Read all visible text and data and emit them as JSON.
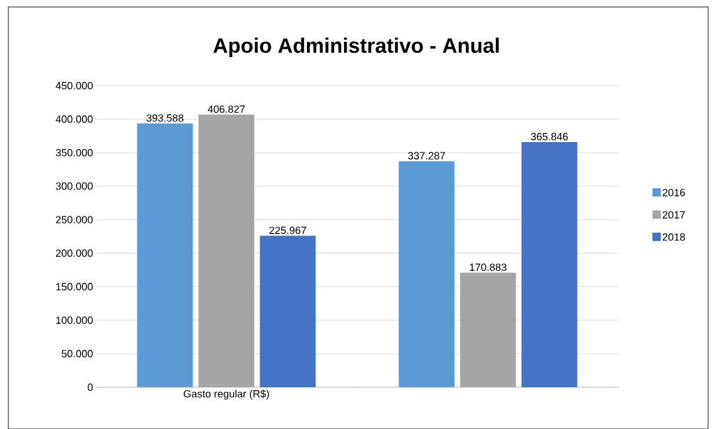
{
  "chart_data": {
    "type": "bar",
    "title": "Apoio Administrativo - Anual",
    "categories": [
      "Gasto regular (R$)",
      null
    ],
    "series": [
      {
        "name": "2016",
        "color": "#5b9bd5",
        "values": [
          393588,
          337287
        ],
        "value_labels": [
          "393.588",
          "337.287"
        ]
      },
      {
        "name": "2017",
        "color": "#a5a5a5",
        "values": [
          406827,
          170883
        ],
        "value_labels": [
          "406.827",
          "170.883"
        ]
      },
      {
        "name": "2018",
        "color": "#4472c4",
        "values": [
          225967,
          365846
        ],
        "value_labels": [
          "225.967",
          "365.846"
        ]
      }
    ],
    "ylim": [
      0,
      450000
    ],
    "yticks": [
      {
        "value": 0,
        "label": "0"
      },
      {
        "value": 50000,
        "label": "50.000"
      },
      {
        "value": 100000,
        "label": "100.000"
      },
      {
        "value": 150000,
        "label": "150.000"
      },
      {
        "value": 200000,
        "label": "200.000"
      },
      {
        "value": 250000,
        "label": "250.000"
      },
      {
        "value": 300000,
        "label": "300.000"
      },
      {
        "value": 350000,
        "label": "350.000"
      },
      {
        "value": 400000,
        "label": "400.000"
      },
      {
        "value": 450000,
        "label": "450.000"
      }
    ],
    "grid": "y",
    "legend": "right"
  }
}
